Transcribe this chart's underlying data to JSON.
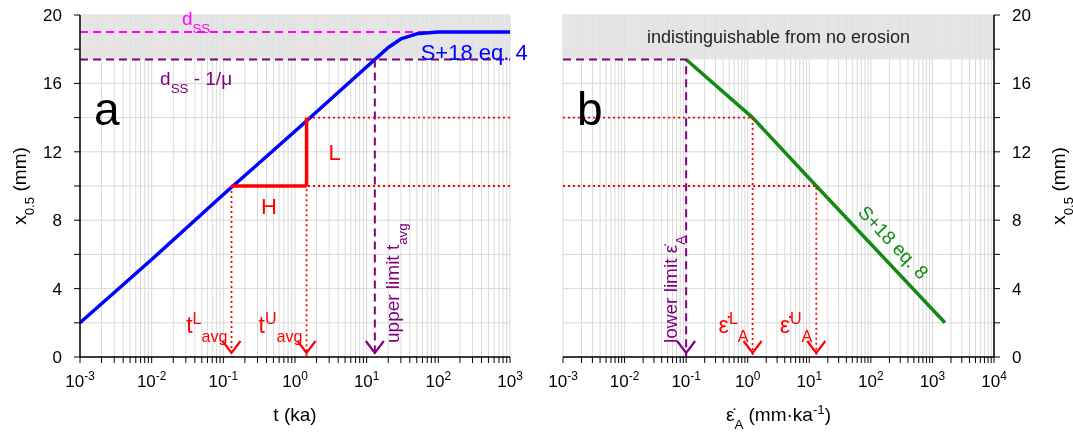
{
  "chart_data": [
    {
      "type": "line",
      "xlabel": "t (ka)",
      "ylabel": "x$_{0.5}$ (mm)",
      "log": "x",
      "grid": true,
      "xlim": [
        0.001,
        1000
      ],
      "xticks": [
        {
          "value": 0.001,
          "label": "10$^{-3}$"
        },
        {
          "value": 0.002,
          "label": null
        },
        {
          "value": 0.003,
          "label": null
        },
        {
          "value": 0.004,
          "label": null
        },
        {
          "value": 0.005,
          "label": null
        },
        {
          "value": 0.006,
          "label": null
        },
        {
          "value": 0.007,
          "label": null
        },
        {
          "value": 0.008,
          "label": null
        },
        {
          "value": 0.009,
          "label": null
        },
        {
          "value": 0.01,
          "label": "10$^{-2}$"
        },
        {
          "value": 0.02,
          "label": null
        },
        {
          "value": 0.03,
          "label": null
        },
        {
          "value": 0.04,
          "label": null
        },
        {
          "value": 0.05,
          "label": null
        },
        {
          "value": 0.06,
          "label": null
        },
        {
          "value": 0.07,
          "label": null
        },
        {
          "value": 0.08,
          "label": null
        },
        {
          "value": 0.09,
          "label": null
        },
        {
          "value": 0.1,
          "label": "10$^{-1}$"
        },
        {
          "value": 0.2,
          "label": null
        },
        {
          "value": 0.3,
          "label": null
        },
        {
          "value": 0.4,
          "label": null
        },
        {
          "value": 0.5,
          "label": null
        },
        {
          "value": 0.6,
          "label": null
        },
        {
          "value": 0.7,
          "label": null
        },
        {
          "value": 0.8,
          "label": null
        },
        {
          "value": 0.9,
          "label": null
        },
        {
          "value": 1,
          "label": "10$^{0}$"
        },
        {
          "value": 2,
          "label": null
        },
        {
          "value": 3,
          "label": null
        },
        {
          "value": 4,
          "label": null
        },
        {
          "value": 5,
          "label": null
        },
        {
          "value": 6,
          "label": null
        },
        {
          "value": 7,
          "label": null
        },
        {
          "value": 8,
          "label": null
        },
        {
          "value": 9,
          "label": null
        },
        {
          "value": 10,
          "label": "10$^{1}$"
        },
        {
          "value": 20,
          "label": null
        },
        {
          "value": 30,
          "label": null
        },
        {
          "value": 40,
          "label": null
        },
        {
          "value": 50,
          "label": null
        },
        {
          "value": 60,
          "label": null
        },
        {
          "value": 70,
          "label": null
        },
        {
          "value": 80,
          "label": null
        },
        {
          "value": 90,
          "label": null
        },
        {
          "value": 100,
          "label": "10$^{2}$"
        },
        {
          "value": 200,
          "label": null
        },
        {
          "value": 300,
          "label": null
        },
        {
          "value": 400,
          "label": null
        },
        {
          "value": 500,
          "label": null
        },
        {
          "value": 600,
          "label": null
        },
        {
          "value": 700,
          "label": null
        },
        {
          "value": 800,
          "label": null
        },
        {
          "value": 900,
          "label": null
        },
        {
          "value": 1000,
          "label": "10$^{3}$"
        }
      ],
      "ylim": [
        0,
        20
      ],
      "yticks": [
        0,
        {
          "value": 2,
          "label": null
        },
        4,
        {
          "value": 6,
          "label": null
        },
        8,
        {
          "value": 10,
          "label": null
        },
        12,
        {
          "value": 14,
          "label": null
        },
        16,
        {
          "value": 18,
          "label": null
        },
        20
      ],
      "bands": [
        {
          "axis": "y",
          "from": 17.4,
          "to": 20,
          "color": "#e0e0e0"
        }
      ],
      "ref_lines": [
        {
          "axis": "y",
          "value": 19,
          "label": "d$_{SS}$",
          "color": "#ff00ff",
          "line_style": "dashed"
        },
        {
          "axis": "y",
          "value": 17.4,
          "label": "d$_{SS}$ - 1/μ",
          "color": "#800080",
          "line_style": "dashed"
        }
      ],
      "annotations": [
        "a"
      ],
      "series": [
        {
          "name": "S+18 eq. 4",
          "color": "#0000ff",
          "line_style": "solid",
          "x": [
            0.001,
            0.01,
            0.1,
            1,
            13,
            20,
            30,
            50,
            100,
            1000
          ],
          "values": [
            2,
            5.7,
            9.5,
            13.2,
            17.4,
            18.1,
            18.6,
            18.9,
            19,
            19
          ]
        },
        {
          "name": "H",
          "color": "#ff0000",
          "line_style": "solid",
          "x": [
            0.13,
            1.45
          ],
          "values": [
            10,
            10
          ]
        },
        {
          "name": "L",
          "color": "#ff0000",
          "line_style": "solid",
          "x": [
            1.45,
            1.45
          ],
          "values": [
            10,
            14
          ]
        },
        {
          "color": "#ff0000",
          "line_style": "dotted",
          "x": [
            1000,
            1.45
          ],
          "values": [
            10,
            10
          ]
        },
        {
          "name": "t$^{L}$$_{avg}$",
          "color": "#ff0000",
          "line_style": "dotted",
          "x": [
            0.13,
            0.13
          ],
          "values": [
            10,
            0
          ]
        },
        {
          "name": "t$^{U}$$_{avg}$",
          "color": "#ff0000",
          "line_style": "dotted",
          "x": [
            1000,
            1.45,
            1.45
          ],
          "values": [
            14,
            14,
            0
          ]
        },
        {
          "name": "upper limit t$_{avg}$",
          "color": "#800080",
          "line_style": "dashed",
          "x": [
            13,
            13
          ],
          "values": [
            17.4,
            0
          ]
        }
      ]
    },
    {
      "type": "line",
      "xlabel": "ε̇$_{A}$ (mm·ka$^{-1}$)",
      "y2label": "x$_{0.5}$ (mm)",
      "log": "x",
      "grid": true,
      "xlim": [
        0.001,
        10000
      ],
      "xticks": [
        {
          "value": 0.001,
          "label": "10$^{-3}$"
        },
        {
          "value": 0.002,
          "label": null
        },
        {
          "value": 0.003,
          "label": null
        },
        {
          "value": 0.004,
          "label": null
        },
        {
          "value": 0.005,
          "label": null
        },
        {
          "value": 0.006,
          "label": null
        },
        {
          "value": 0.007,
          "label": null
        },
        {
          "value": 0.008,
          "label": null
        },
        {
          "value": 0.009,
          "label": null
        },
        {
          "value": 0.01,
          "label": "10$^{-2}$"
        },
        {
          "value": 0.02,
          "label": null
        },
        {
          "value": 0.03,
          "label": null
        },
        {
          "value": 0.04,
          "label": null
        },
        {
          "value": 0.05,
          "label": null
        },
        {
          "value": 0.06,
          "label": null
        },
        {
          "value": 0.07,
          "label": null
        },
        {
          "value": 0.08,
          "label": null
        },
        {
          "value": 0.09,
          "label": null
        },
        {
          "value": 0.1,
          "label": "10$^{-1}$"
        },
        {
          "value": 0.2,
          "label": null
        },
        {
          "value": 0.3,
          "label": null
        },
        {
          "value": 0.4,
          "label": null
        },
        {
          "value": 0.5,
          "label": null
        },
        {
          "value": 0.6,
          "label": null
        },
        {
          "value": 0.7,
          "label": null
        },
        {
          "value": 0.8,
          "label": null
        },
        {
          "value": 0.9,
          "label": null
        },
        {
          "value": 1,
          "label": "10$^{0}$"
        },
        {
          "value": 2,
          "label": null
        },
        {
          "value": 3,
          "label": null
        },
        {
          "value": 4,
          "label": null
        },
        {
          "value": 5,
          "label": null
        },
        {
          "value": 6,
          "label": null
        },
        {
          "value": 7,
          "label": null
        },
        {
          "value": 8,
          "label": null
        },
        {
          "value": 9,
          "label": null
        },
        {
          "value": 10,
          "label": "10$^{1}$"
        },
        {
          "value": 20,
          "label": null
        },
        {
          "value": 30,
          "label": null
        },
        {
          "value": 40,
          "label": null
        },
        {
          "value": 50,
          "label": null
        },
        {
          "value": 60,
          "label": null
        },
        {
          "value": 70,
          "label": null
        },
        {
          "value": 80,
          "label": null
        },
        {
          "value": 90,
          "label": null
        },
        {
          "value": 100,
          "label": "10$^{2}$"
        },
        {
          "value": 200,
          "label": null
        },
        {
          "value": 300,
          "label": null
        },
        {
          "value": 400,
          "label": null
        },
        {
          "value": 500,
          "label": null
        },
        {
          "value": 600,
          "label": null
        },
        {
          "value": 700,
          "label": null
        },
        {
          "value": 800,
          "label": null
        },
        {
          "value": 900,
          "label": null
        },
        {
          "value": 1000,
          "label": "10$^{3}$"
        },
        {
          "value": 2000,
          "label": null
        },
        {
          "value": 3000,
          "label": null
        },
        {
          "value": 4000,
          "label": null
        },
        {
          "value": 5000,
          "label": null
        },
        {
          "value": 6000,
          "label": null
        },
        {
          "value": 7000,
          "label": null
        },
        {
          "value": 8000,
          "label": null
        },
        {
          "value": 9000,
          "label": null
        },
        {
          "value": 10000,
          "label": "10$^{4}$"
        }
      ],
      "y2lim": [
        0,
        20
      ],
      "y2ticks": [
        0,
        {
          "value": 2,
          "label": null
        },
        4,
        {
          "value": 6,
          "label": null
        },
        8,
        {
          "value": 10,
          "label": null
        },
        12,
        {
          "value": 14,
          "label": null
        },
        16,
        {
          "value": 18,
          "label": null
        },
        20
      ],
      "bands": [
        {
          "axis": "y2",
          "from": 17.4,
          "to": 20,
          "color": "#e0e0e0",
          "label": "indistinguishable from no erosion"
        }
      ],
      "annotations": [
        "b"
      ],
      "series": [
        {
          "name": "S+18 eq. 8",
          "color": "#138a13",
          "line_style": "solid",
          "axis": "y2",
          "x": [
            0.1,
            1.2,
            13,
            1600
          ],
          "values": [
            17.4,
            14,
            10,
            2
          ]
        },
        {
          "name": "lower limit ε̇$_{A}$",
          "color": "#800080",
          "line_style": "dashed",
          "axis": "y2",
          "x": [
            0.001,
            0.1,
            0.1
          ],
          "values": [
            17.4,
            17.4,
            0
          ]
        },
        {
          "name": "ε̇$^{L}$$_{A}$",
          "color": "#ff0000",
          "line_style": "dotted",
          "axis": "y2",
          "x": [
            0.001,
            1.2,
            1.2
          ],
          "values": [
            14,
            14,
            0
          ]
        },
        {
          "name": "ε̇$^{U}$$_{A}$",
          "color": "#ff0000",
          "line_style": "dotted",
          "axis": "y2",
          "x": [
            0.001,
            13,
            13
          ],
          "values": [
            10,
            10,
            0
          ]
        }
      ]
    }
  ]
}
